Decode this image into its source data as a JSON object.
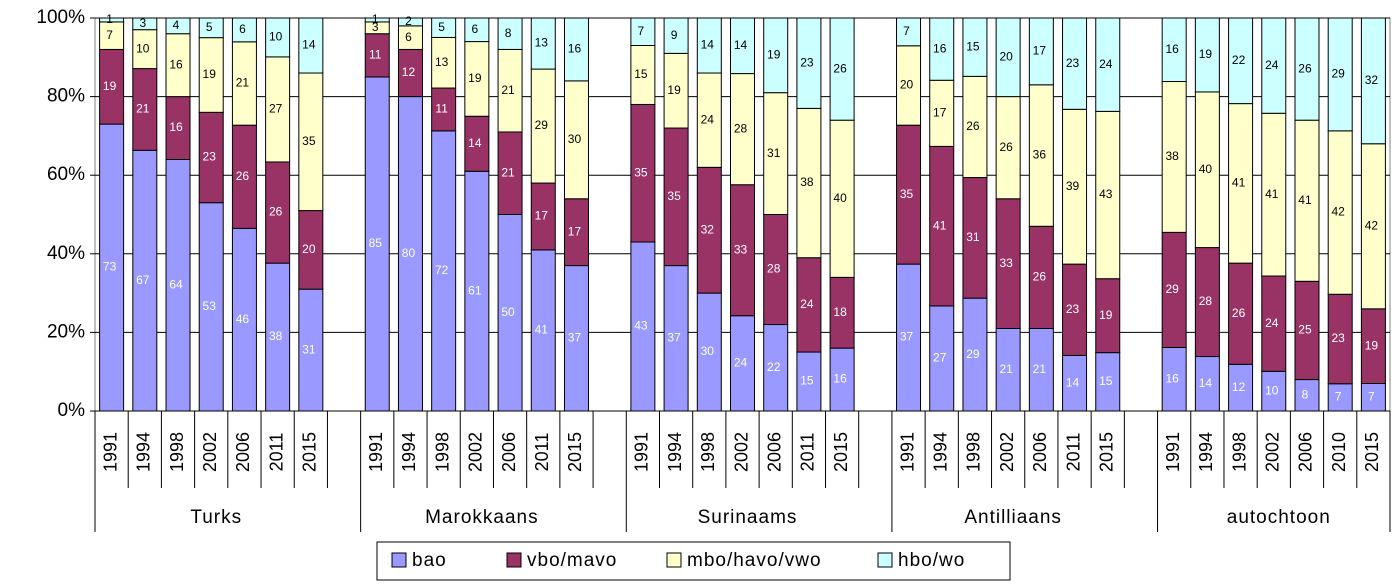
{
  "chart_data": {
    "type": "stacked_bar_percent",
    "groups": [
      {
        "name": "Turks",
        "categories": [
          "1991",
          "1994",
          "1998",
          "2002",
          "2006",
          "2011",
          "2015"
        ]
      },
      {
        "name": "Marokkaans",
        "categories": [
          "1991",
          "1994",
          "1998",
          "2002",
          "2006",
          "2011",
          "2015"
        ]
      },
      {
        "name": "Surinaams",
        "categories": [
          "1991",
          "1994",
          "1998",
          "2002",
          "2006",
          "2011",
          "2015"
        ]
      },
      {
        "name": "Antilliaans",
        "categories": [
          "1991",
          "1994",
          "1998",
          "2002",
          "2006",
          "2011",
          "2015"
        ]
      },
      {
        "name": "autochtoon",
        "categories": [
          "1991",
          "1994",
          "1998",
          "2002",
          "2006",
          "2010",
          "2015"
        ]
      }
    ],
    "series": [
      {
        "name": "bao",
        "color": "#9999ff",
        "values": [
          73,
          67,
          64,
          53,
          46,
          38,
          31,
          85,
          80,
          72,
          61,
          50,
          41,
          37,
          43,
          37,
          30,
          24,
          22,
          15,
          16,
          37,
          27,
          29,
          21,
          21,
          14,
          15,
          16,
          14,
          12,
          10,
          8,
          7,
          7
        ]
      },
      {
        "name": "vbo/mavo",
        "color": "#993366",
        "values": [
          19,
          21,
          16,
          23,
          26,
          26,
          20,
          11,
          12,
          11,
          14,
          21,
          17,
          17,
          35,
          35,
          32,
          33,
          28,
          24,
          18,
          35,
          41,
          31,
          33,
          26,
          23,
          19,
          29,
          28,
          26,
          24,
          25,
          23,
          19
        ]
      },
      {
        "name": "mbo/havo/vwo",
        "color": "#ffffcc",
        "values": [
          7,
          10,
          16,
          19,
          21,
          27,
          35,
          3,
          6,
          13,
          19,
          21,
          29,
          30,
          15,
          19,
          24,
          28,
          31,
          38,
          40,
          20,
          17,
          26,
          26,
          36,
          39,
          43,
          38,
          40,
          41,
          41,
          41,
          42,
          42
        ]
      },
      {
        "name": "hbo/wo",
        "color": "#ccffff",
        "values": [
          1,
          3,
          4,
          5,
          6,
          10,
          14,
          1,
          2,
          5,
          6,
          8,
          13,
          16,
          7,
          9,
          14,
          14,
          19,
          23,
          26,
          7,
          16,
          15,
          20,
          17,
          23,
          24,
          16,
          19,
          22,
          24,
          26,
          29,
          32
        ]
      }
    ],
    "ylim": [
      0,
      100
    ],
    "yticks": [
      {
        "value": 0,
        "label": "0%"
      },
      {
        "value": 20,
        "label": "20%"
      },
      {
        "value": 40,
        "label": "40%"
      },
      {
        "value": 60,
        "label": "60%"
      },
      {
        "value": 80,
        "label": "80%"
      },
      {
        "value": 100,
        "label": "100%"
      }
    ],
    "grid": true,
    "legend": "bottom"
  }
}
